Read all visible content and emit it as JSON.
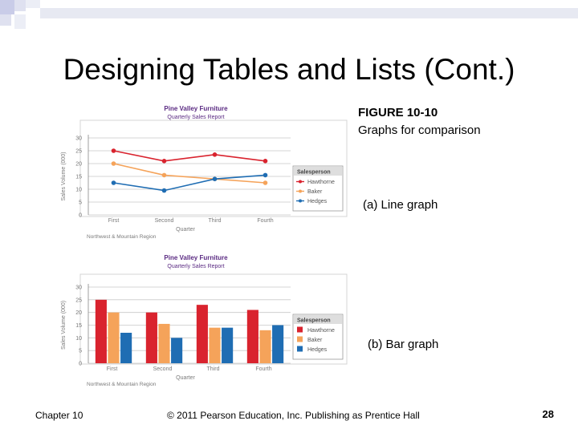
{
  "slide": {
    "title": "Designing Tables and Lists (Cont.)",
    "figure_number": "FIGURE 10-10",
    "figure_caption": "Graphs for comparison",
    "caption_a": "(a) Line graph",
    "caption_b": "(b) Bar graph",
    "footer_left": "Chapter 10",
    "footer_center": "© 2011 Pearson Education, Inc. Publishing as Prentice Hall",
    "page_number": "28"
  },
  "colors": {
    "hawthorne": "#d9232e",
    "baker": "#f5a35a",
    "hedges": "#1f6db3",
    "title_text": "#5a2a82",
    "grid": "#c9c9c9",
    "axis_text": "#7a7a7a",
    "corner_block": "#c9cce8"
  },
  "chart_data": [
    {
      "type": "line",
      "title": "Pine Valley Furniture",
      "subtitle": "Quarterly Sales Report",
      "xlabel": "Quarter",
      "ylabel": "Sales Volume (000)",
      "categories": [
        "First",
        "Second",
        "Third",
        "Fourth"
      ],
      "ylim": [
        0,
        30
      ],
      "yticks": [
        0,
        5,
        10,
        15,
        20,
        25,
        30
      ],
      "grid": true,
      "legend_title": "Salesperson",
      "legend_position": "right",
      "note": "Northwest & Mountain Region",
      "series": [
        {
          "name": "Hawthorne",
          "color_key": "hawthorne",
          "values": [
            25,
            21,
            23.5,
            21
          ]
        },
        {
          "name": "Baker",
          "color_key": "baker",
          "values": [
            20,
            15.5,
            14,
            12.5
          ]
        },
        {
          "name": "Hedges",
          "color_key": "hedges",
          "values": [
            12.5,
            9.5,
            14,
            15.5
          ]
        }
      ]
    },
    {
      "type": "bar",
      "title": "Pine Valley Furniture",
      "subtitle": "Quarterly Sales Report",
      "xlabel": "Quarter",
      "ylabel": "Sales Volume (000)",
      "categories": [
        "First",
        "Second",
        "Third",
        "Fourth"
      ],
      "ylim": [
        0,
        30
      ],
      "yticks": [
        0,
        5,
        10,
        15,
        20,
        25,
        30
      ],
      "grid": true,
      "legend_title": "Salesperson",
      "legend_position": "right",
      "note": "Northwest & Mountain Region",
      "series": [
        {
          "name": "Hawthorne",
          "color_key": "hawthorne",
          "values": [
            25,
            20,
            23,
            21
          ]
        },
        {
          "name": "Baker",
          "color_key": "baker",
          "values": [
            20,
            15.5,
            14,
            13
          ]
        },
        {
          "name": "Hedges",
          "color_key": "hedges",
          "values": [
            12,
            10,
            14,
            15
          ]
        }
      ]
    }
  ]
}
